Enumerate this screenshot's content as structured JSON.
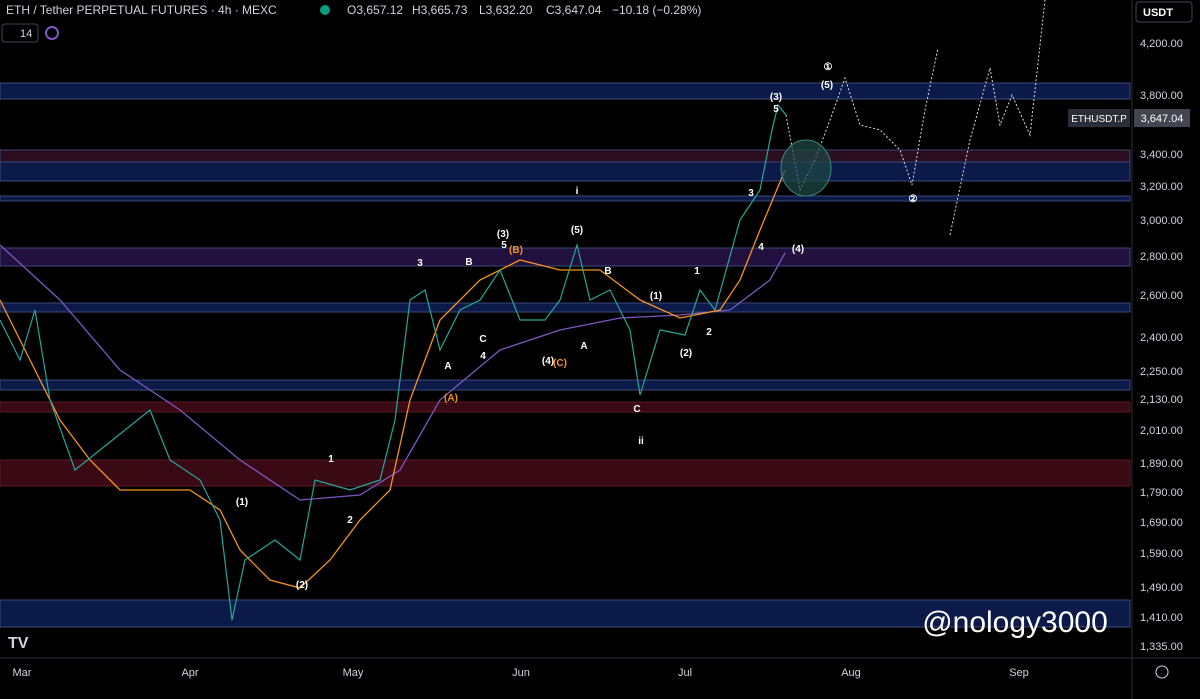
{
  "header": {
    "symbol": "ETH / Tether PERPETUAL FUTURES · 4h · MEXC",
    "open": "O3,657.12",
    "high": "H3,665.73",
    "low": "L3,632.20",
    "close": "C3,647.04",
    "change": "−10.18 (−0.28%)",
    "indicator": "14"
  },
  "currency": "USDT",
  "price_axis": [
    "4,200.00",
    "3,800.00",
    "3,400.00",
    "3,200.00",
    "3,000.00",
    "2,800.00",
    "2,600.00",
    "2,400.00",
    "2,250.00",
    "2,130.00",
    "2,010.00",
    "1,890.00",
    "1,790.00",
    "1,690.00",
    "1,590.00",
    "1,490.00",
    "1,410.00",
    "1,335.00"
  ],
  "price_tag": {
    "symbol": "ETHUSDT.P",
    "price": "3,647.04"
  },
  "time_axis": [
    "Mar",
    "Apr",
    "May",
    "Jun",
    "Jul",
    "Aug",
    "Sep"
  ],
  "annotations": [
    "(3)",
    "5",
    "(5)",
    "①",
    "3",
    "4",
    "(4)",
    "②",
    "i",
    "(3)",
    "5",
    "(B)",
    "(5)",
    "3",
    "B",
    "B",
    "1",
    "(1)",
    "C",
    "4",
    "A",
    "(4)",
    "(C)",
    "A",
    "(2)",
    "2",
    "(A)",
    "C",
    "ii",
    "1",
    "(1)",
    "2",
    "(2)"
  ],
  "watermark": "@nology3000"
}
